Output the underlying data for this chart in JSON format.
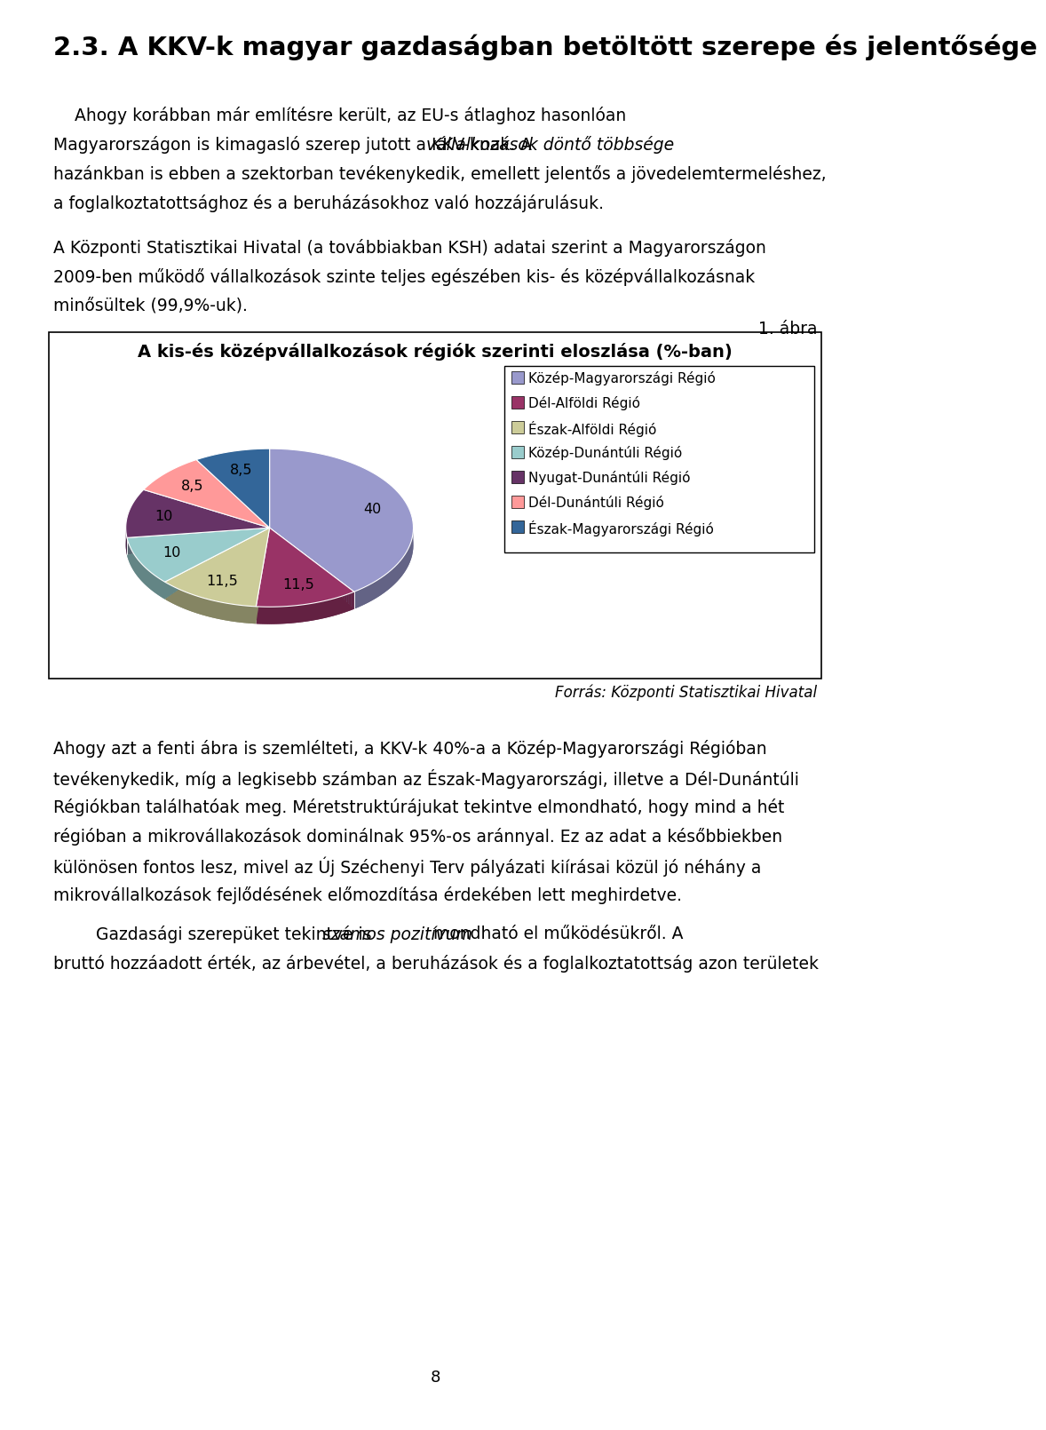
{
  "page_title": "2.3. A KKV-k magyar gazdaságban betöltött szerepe és jelentősége",
  "chart_title": "A kis-és középvállalkozások régiók szerinti eloszlása (%-ban)",
  "slices": [
    40,
    11.5,
    11.5,
    10,
    10,
    8.5,
    8.5
  ],
  "pie_labels": [
    "40",
    "11,5",
    "11,5",
    "10",
    "10",
    "8,5",
    "8,5"
  ],
  "colors": [
    "#9999cc",
    "#993366",
    "#cccc99",
    "#99cccc",
    "#663366",
    "#ff9999",
    "#336699"
  ],
  "legend_labels": [
    "Közép-Magyarországi Régió",
    "Dél-Alföldi Régió",
    "Észak-Alföldi Régió",
    "Közép-Dunántúli Régió",
    "Nyugat-Dunántúli Régió",
    "Dél-Dunántúli Régió",
    "Észak-Magyarországi Régió"
  ],
  "source_text": "Forrás: Központi Statisztikai Hivatal",
  "figure_label": "1. ábra",
  "page_number": "8",
  "bg_color": "#ffffff",
  "text_color": "#000000",
  "startangle": 90,
  "para1_line1": "    Ahogy korábban már említésre került, az EU-s átlaghoz hasonlóan",
  "para1_line2_pre": "Magyarországon is kimagasló szerep jutott a KKV-knak. A ",
  "para1_line2_italic": "vállalkozások döntő többsége",
  "para1_line3": "hazánkban is ebben a szektorban tevékenykedik, emellett jelentős a jövedelemtermeléshez,",
  "para1_line4": "a foglalkoztatottsághoz és a beruházásokhoz való hozzájárulásuk.",
  "para2_line1": "A Központi Statisztikai Hivatal (a továbbiakban KSH) adatai szerint a Magyarországon",
  "para2_line2": "2009-ben működő vállalkozások szinte teljes egészében kis- és középvállalkozásnak",
  "para2_line3": "minősültek (99,9%-uk).",
  "para3_lines": [
    "Ahogy azt a fenti ábra is szemlélteti, a KKV-k 40%-a a Közép-Magyarországi Régióban",
    "tevékenykedik, míg a legkisebb számban az Észak-Magyarországi, illetve a Dél-Dunántúli",
    "Régiókban találhatóak meg. Méretstruktúrájukat tekintve elmondható, hogy mind a hét",
    "régióban a mikrovállakozások dominálnak 95%-os aránnyal. Ez az adat a későbbiekben",
    "különösen fontos lesz, mivel az Új Széchenyi Terv pályázati kiírásai közül jó néhány a",
    "mikrovállalkozások fejlődésének előmozdítása érdekében lett meghirdetve."
  ],
  "para4_pre": "        Gazdasági szerepüket tekintve is ",
  "para4_italic": "számos pozitívum",
  "para4_post": " mondható el működésükről. A",
  "para4_line2": "bruttó hozzáadott érték, az árbevétel, a beruházások és a foglalkoztatottság azon területek"
}
